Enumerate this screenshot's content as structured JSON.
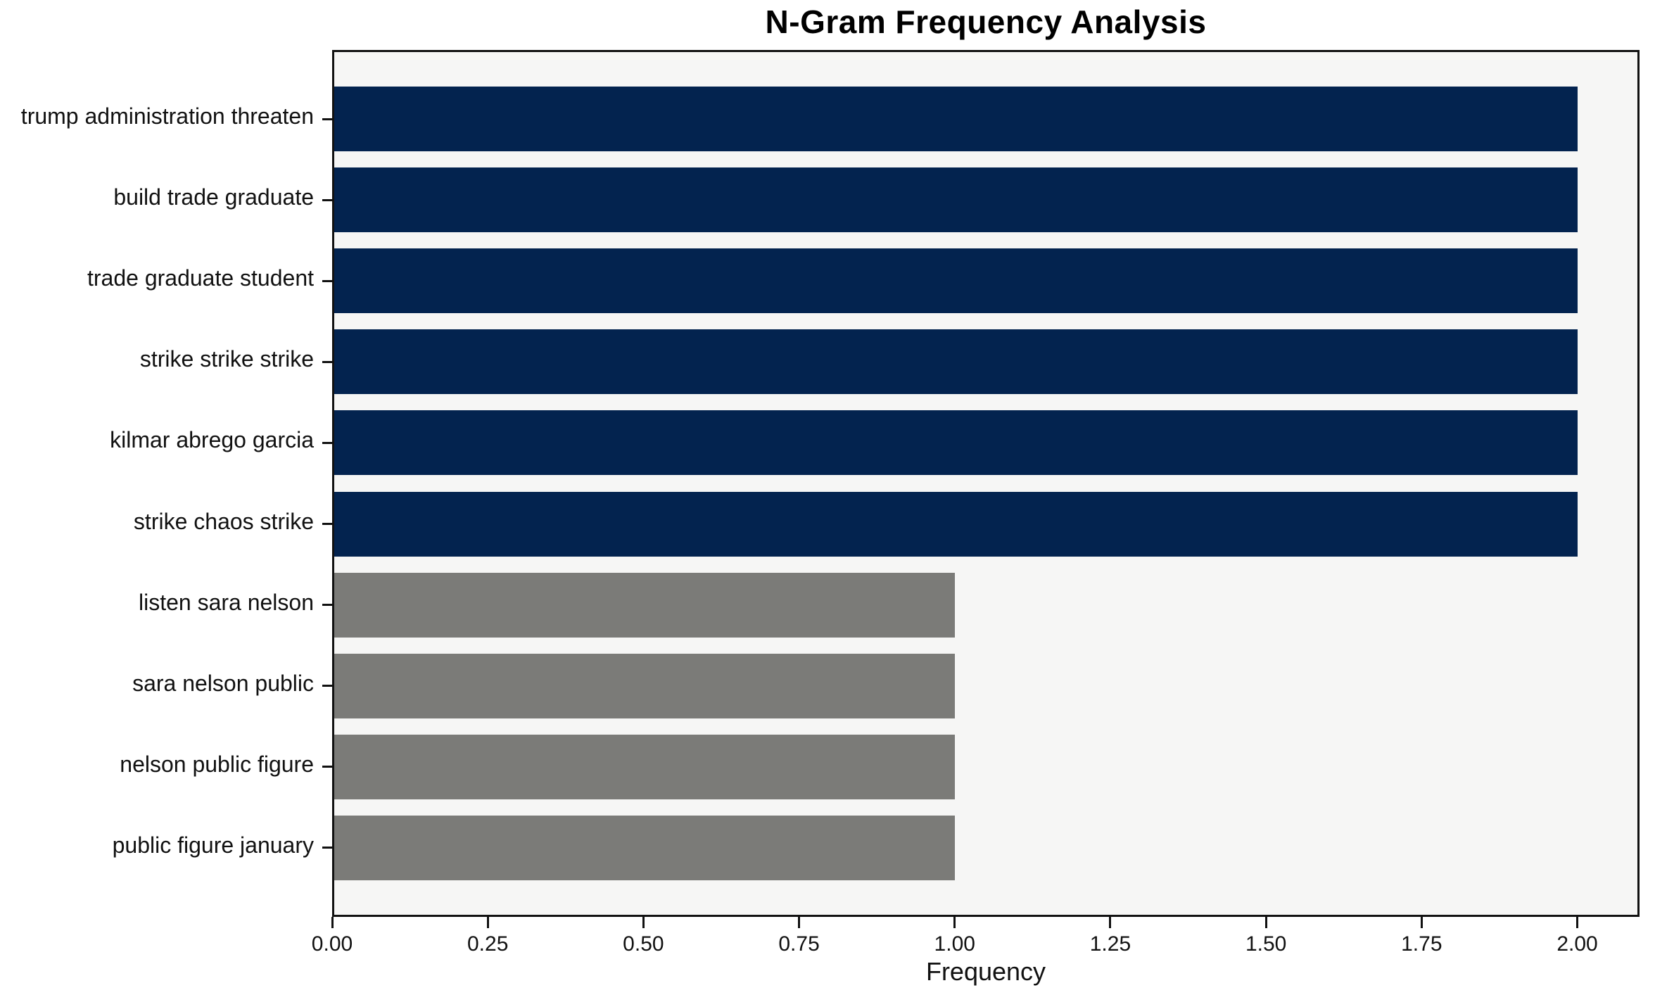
{
  "title": "N-Gram Frequency Analysis",
  "xlabel": "Frequency",
  "colors": {
    "navy_bar": "#03234f",
    "gray_bar": "#7b7b78",
    "plot_background": "#f6f6f5",
    "figure_background": "#ffffff",
    "spine": "#111111",
    "text": "#000000"
  },
  "chart_data": {
    "type": "bar",
    "orientation": "horizontal",
    "title": "N-Gram Frequency Analysis",
    "xlabel": "Frequency",
    "ylabel": "",
    "categories": [
      "trump administration threaten",
      "build trade graduate",
      "trade graduate student",
      "strike strike strike",
      "kilmar abrego garcia",
      "strike chaos strike",
      "listen sara nelson",
      "sara nelson public",
      "nelson public figure",
      "public figure january"
    ],
    "values": [
      2,
      2,
      2,
      2,
      2,
      2,
      1,
      1,
      1,
      1
    ],
    "bar_colors": [
      "#03234f",
      "#03234f",
      "#03234f",
      "#03234f",
      "#03234f",
      "#03234f",
      "#7b7b78",
      "#7b7b78",
      "#7b7b78",
      "#7b7b78"
    ],
    "xlim": [
      0,
      2.1
    ],
    "xticks": [
      0,
      0.25,
      0.5,
      0.75,
      1.0,
      1.25,
      1.5,
      1.75,
      2.0
    ],
    "xtick_labels": [
      "0.00",
      "0.25",
      "0.50",
      "0.75",
      "1.00",
      "1.25",
      "1.50",
      "1.75",
      "2.00"
    ],
    "grid": false,
    "legend": null,
    "bar_height_ratio": 0.8
  }
}
